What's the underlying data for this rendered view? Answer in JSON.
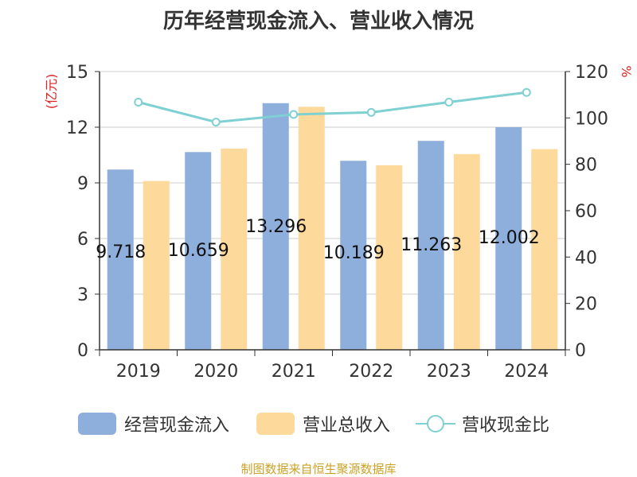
{
  "chart_data": {
    "type": "bar",
    "title": "历年经营现金流入、营业收入情况",
    "categories": [
      "2019",
      "2020",
      "2021",
      "2022",
      "2023",
      "2024"
    ],
    "y_left": {
      "label": "(亿元)",
      "ticks": [
        "0",
        "3",
        "6",
        "9",
        "12",
        "15"
      ],
      "range": [
        0,
        15
      ]
    },
    "y_right": {
      "label": "%",
      "ticks": [
        "0",
        "20",
        "40",
        "60",
        "80",
        "100",
        "120"
      ],
      "range": [
        0,
        120
      ]
    },
    "grid": true,
    "legend_position": "bottom",
    "series": [
      {
        "name": "经营现金流入",
        "type": "bar",
        "axis": "left",
        "color": "#8eaedb",
        "values": [
          9.718,
          10.659,
          13.296,
          10.189,
          11.263,
          12.002
        ],
        "data_labels": [
          "9.718",
          "10.659",
          "13.296",
          "10.189",
          "11.263",
          "12.002"
        ]
      },
      {
        "name": "营业总收入",
        "type": "bar",
        "axis": "left",
        "color": "#fdd99b",
        "values": [
          9.1,
          10.85,
          13.1,
          9.95,
          10.55,
          10.82
        ]
      },
      {
        "name": "营收现金比",
        "type": "line",
        "axis": "right",
        "color": "#7fd0d2",
        "values": [
          106.8,
          98.2,
          101.5,
          102.4,
          106.8,
          111.0
        ]
      }
    ]
  },
  "source_note": "制图数据来自恒生聚源数据库"
}
